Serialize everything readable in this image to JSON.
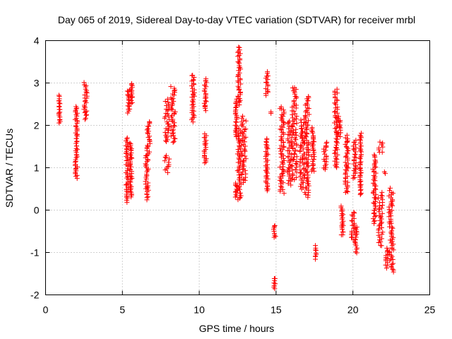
{
  "chart_data": {
    "type": "scatter",
    "title": "Day 065 of 2019, Sidereal Day-to-day VTEC variation (SDTVAR) for receiver mrbl",
    "xlabel": "GPS time / hours",
    "ylabel": "SDTVAR / TECUs",
    "xlim": [
      0,
      25
    ],
    "ylim": [
      -2,
      4
    ],
    "xticks": [
      "0",
      "5",
      "10",
      "15",
      "20",
      "25"
    ],
    "yticks": [
      "-2",
      "-1",
      "0",
      "1",
      "2",
      "3",
      "4"
    ],
    "grid": true,
    "marker": "+",
    "color": "#ff0000",
    "series": [
      {
        "name": "SDTVAR",
        "clusters": [
          {
            "x": 0.9,
            "w": 0.1,
            "y": [
              2.05,
              2.7
            ]
          },
          {
            "x": 2.0,
            "w": 0.15,
            "y": [
              0.75,
              2.45
            ]
          },
          {
            "x": 2.6,
            "w": 0.2,
            "y": [
              2.15,
              3.0
            ]
          },
          {
            "x": 5.3,
            "w": 0.15,
            "y": [
              0.2,
              1.7
            ]
          },
          {
            "x": 5.4,
            "w": 0.15,
            "y": [
              2.3,
              2.85
            ]
          },
          {
            "x": 5.55,
            "w": 0.15,
            "y": [
              0.3,
              1.6
            ]
          },
          {
            "x": 5.6,
            "w": 0.1,
            "y": [
              2.5,
              3.0
            ]
          },
          {
            "x": 6.6,
            "w": 0.2,
            "y": [
              0.25,
              1.3
            ]
          },
          {
            "x": 6.7,
            "w": 0.2,
            "y": [
              1.3,
              2.1
            ]
          },
          {
            "x": 7.9,
            "w": 0.3,
            "y": [
              0.9,
              1.3
            ]
          },
          {
            "x": 7.9,
            "w": 0.3,
            "y": [
              1.6,
              2.6
            ]
          },
          {
            "x": 8.3,
            "w": 0.3,
            "y": [
              1.6,
              2.9
            ]
          },
          {
            "x": 9.6,
            "w": 0.2,
            "y": [
              2.1,
              3.2
            ]
          },
          {
            "x": 10.4,
            "w": 0.15,
            "y": [
              1.1,
              1.8
            ]
          },
          {
            "x": 10.4,
            "w": 0.15,
            "y": [
              2.35,
              3.1
            ]
          },
          {
            "x": 12.4,
            "w": 0.1,
            "y": [
              0.3,
              0.65
            ]
          },
          {
            "x": 12.4,
            "w": 0.1,
            "y": [
              1.75,
              2.6
            ]
          },
          {
            "x": 12.6,
            "w": 0.25,
            "y": [
              0.25,
              1.9
            ]
          },
          {
            "x": 12.6,
            "w": 0.2,
            "y": [
              2.5,
              3.85
            ]
          },
          {
            "x": 12.9,
            "w": 0.3,
            "y": [
              0.65,
              2.2
            ]
          },
          {
            "x": 14.4,
            "w": 0.15,
            "y": [
              0.45,
              1.7
            ]
          },
          {
            "x": 14.4,
            "w": 0.15,
            "y": [
              2.7,
              3.25
            ]
          },
          {
            "x": 14.9,
            "w": 0.15,
            "y": [
              -0.65,
              -0.35
            ]
          },
          {
            "x": 14.9,
            "w": 0.1,
            "y": [
              -1.85,
              -1.6
            ]
          },
          {
            "x": 14.7,
            "w": 0.1,
            "y": [
              2.3,
              2.3
            ]
          },
          {
            "x": 15.4,
            "w": 0.3,
            "y": [
              0.4,
              2.45
            ]
          },
          {
            "x": 15.9,
            "w": 0.3,
            "y": [
              0.6,
              2.1
            ]
          },
          {
            "x": 16.2,
            "w": 0.3,
            "y": [
              0.7,
              2.9
            ]
          },
          {
            "x": 16.7,
            "w": 0.3,
            "y": [
              0.5,
              2.15
            ]
          },
          {
            "x": 17.0,
            "w": 0.3,
            "y": [
              0.3,
              2.7
            ]
          },
          {
            "x": 17.4,
            "w": 0.2,
            "y": [
              0.9,
              1.95
            ]
          },
          {
            "x": 17.6,
            "w": 0.1,
            "y": [
              -1.15,
              -0.85
            ]
          },
          {
            "x": 18.2,
            "w": 0.2,
            "y": [
              0.95,
              1.6
            ]
          },
          {
            "x": 18.9,
            "w": 0.2,
            "y": [
              1.0,
              2.85
            ]
          },
          {
            "x": 19.1,
            "w": 0.2,
            "y": [
              1.75,
              2.2
            ]
          },
          {
            "x": 19.3,
            "w": 0.15,
            "y": [
              -0.6,
              0.1
            ]
          },
          {
            "x": 19.6,
            "w": 0.2,
            "y": [
              0.4,
              1.75
            ]
          },
          {
            "x": 20.0,
            "w": 0.2,
            "y": [
              -0.7,
              -0.05
            ]
          },
          {
            "x": 20.1,
            "w": 0.2,
            "y": [
              0.75,
              1.65
            ]
          },
          {
            "x": 20.2,
            "w": 0.15,
            "y": [
              -1.0,
              -0.4
            ]
          },
          {
            "x": 20.5,
            "w": 0.1,
            "y": [
              0.35,
              1.8
            ]
          },
          {
            "x": 21.4,
            "w": 0.2,
            "y": [
              -0.3,
              1.3
            ]
          },
          {
            "x": 21.8,
            "w": 0.3,
            "y": [
              -0.85,
              0.4
            ]
          },
          {
            "x": 21.8,
            "w": 0.3,
            "y": [
              1.35,
              1.6
            ]
          },
          {
            "x": 22.1,
            "w": 0.2,
            "y": [
              0.85,
              0.9
            ]
          },
          {
            "x": 22.2,
            "w": 0.15,
            "y": [
              -1.35,
              -0.9
            ]
          },
          {
            "x": 22.5,
            "w": 0.3,
            "y": [
              -1.45,
              0.5
            ]
          }
        ]
      }
    ]
  }
}
